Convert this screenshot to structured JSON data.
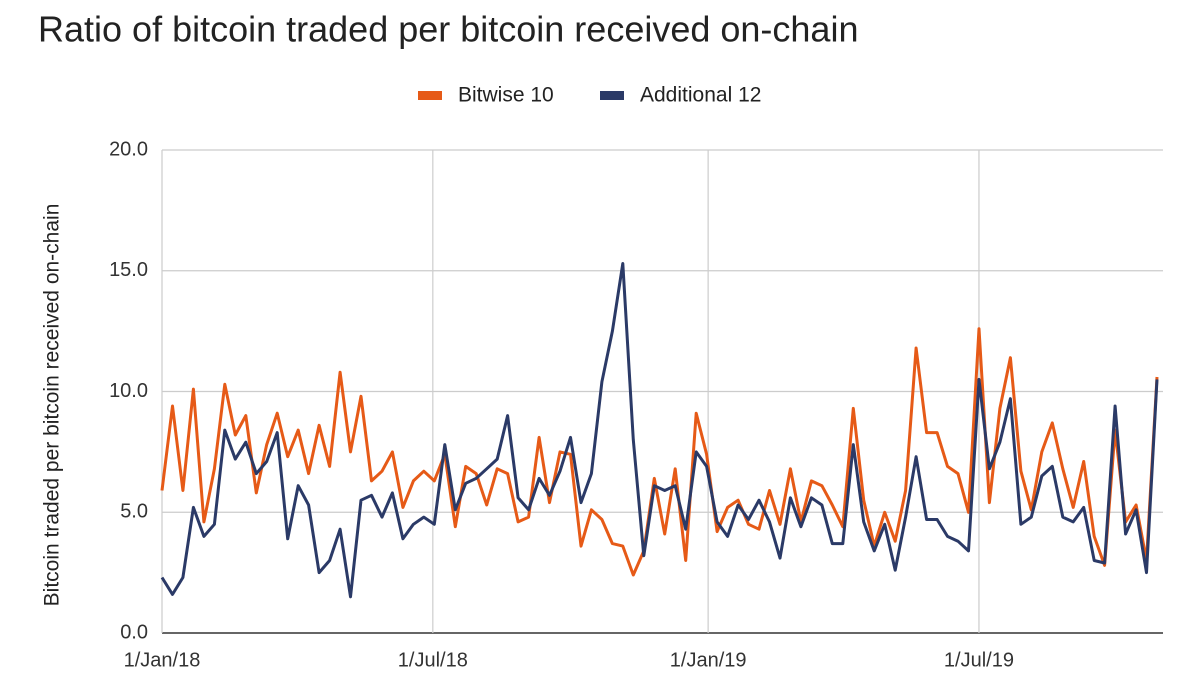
{
  "chart_data": {
    "type": "line",
    "title": "Ratio of bitcoin traded per bitcoin received on-chain",
    "y_label": "Bitcoin traded per bitcoin received on-chain",
    "legend": "top",
    "grid": true,
    "x": [
      "2018-01-01",
      "2018-01-08",
      "2018-01-15",
      "2018-01-22",
      "2018-01-29",
      "2018-02-05",
      "2018-02-12",
      "2018-02-19",
      "2018-02-26",
      "2018-03-05",
      "2018-03-12",
      "2018-03-19",
      "2018-03-26",
      "2018-04-02",
      "2018-04-09",
      "2018-04-16",
      "2018-04-23",
      "2018-04-30",
      "2018-05-07",
      "2018-05-14",
      "2018-05-21",
      "2018-05-28",
      "2018-06-04",
      "2018-06-11",
      "2018-06-18",
      "2018-06-25",
      "2018-07-02",
      "2018-07-09",
      "2018-07-16",
      "2018-07-23",
      "2018-07-30",
      "2018-08-06",
      "2018-08-13",
      "2018-08-20",
      "2018-08-27",
      "2018-09-03",
      "2018-09-10",
      "2018-09-17",
      "2018-09-24",
      "2018-10-01",
      "2018-10-08",
      "2018-10-15",
      "2018-10-22",
      "2018-10-29",
      "2018-11-05",
      "2018-11-12",
      "2018-11-19",
      "2018-11-26",
      "2018-12-03",
      "2018-12-10",
      "2018-12-17",
      "2018-12-24",
      "2018-12-31",
      "2019-01-07",
      "2019-01-14",
      "2019-01-21",
      "2019-01-28",
      "2019-02-04",
      "2019-02-11",
      "2019-02-18",
      "2019-02-25",
      "2019-03-04",
      "2019-03-11",
      "2019-03-18",
      "2019-03-25",
      "2019-04-01",
      "2019-04-08",
      "2019-04-15",
      "2019-04-22",
      "2019-04-29",
      "2019-05-06",
      "2019-05-13",
      "2019-05-20",
      "2019-05-27",
      "2019-06-03",
      "2019-06-10",
      "2019-06-17",
      "2019-06-24",
      "2019-07-01",
      "2019-07-08",
      "2019-07-15",
      "2019-07-22",
      "2019-07-29",
      "2019-08-05",
      "2019-08-12",
      "2019-08-19",
      "2019-08-26",
      "2019-09-02",
      "2019-09-09",
      "2019-09-16",
      "2019-09-23",
      "2019-09-30",
      "2019-10-07",
      "2019-10-14",
      "2019-10-21",
      "2019-10-28"
    ],
    "series": [
      {
        "name": "Bitwise 10",
        "color": "#e65a17",
        "values": [
          5.9,
          9.4,
          5.9,
          10.1,
          4.6,
          6.8,
          10.3,
          8.2,
          9.0,
          5.8,
          7.8,
          9.1,
          7.3,
          8.4,
          6.6,
          8.6,
          6.9,
          10.8,
          7.5,
          9.8,
          6.3,
          6.7,
          7.5,
          5.2,
          6.3,
          6.7,
          6.3,
          7.4,
          4.4,
          6.9,
          6.6,
          5.3,
          6.8,
          6.6,
          4.6,
          4.8,
          8.1,
          5.4,
          7.5,
          7.4,
          3.6,
          5.1,
          4.7,
          3.7,
          3.6,
          2.4,
          3.4,
          6.4,
          4.1,
          6.8,
          3.0,
          9.1,
          7.4,
          4.2,
          5.2,
          5.5,
          4.5,
          4.3,
          5.9,
          4.5,
          6.8,
          4.6,
          6.3,
          6.1,
          5.3,
          4.4,
          9.3,
          5.5,
          3.6,
          5.0,
          3.8,
          5.9,
          11.8,
          8.3,
          8.3,
          6.9,
          6.6,
          5.0,
          12.6,
          5.4,
          9.3,
          11.4,
          6.7,
          5.1,
          7.5,
          8.7,
          6.8,
          5.2,
          7.1,
          4.0,
          2.8,
          8.4,
          4.6,
          5.3,
          3.0,
          10.6
        ]
      },
      {
        "name": "Additional 12",
        "color": "#2b3a67",
        "values": [
          2.3,
          1.6,
          2.3,
          5.2,
          4.0,
          4.5,
          8.4,
          7.2,
          7.9,
          6.6,
          7.1,
          8.3,
          3.9,
          6.1,
          5.3,
          2.5,
          3.0,
          4.3,
          1.5,
          5.5,
          5.7,
          4.8,
          5.8,
          3.9,
          4.5,
          4.8,
          4.5,
          7.8,
          5.1,
          6.2,
          6.4,
          6.8,
          7.2,
          9.0,
          5.6,
          5.1,
          6.4,
          5.7,
          6.7,
          8.1,
          5.4,
          6.6,
          10.4,
          12.5,
          15.3,
          8.0,
          3.2,
          6.1,
          5.9,
          6.1,
          4.3,
          7.5,
          6.9,
          4.6,
          4.0,
          5.3,
          4.7,
          5.5,
          4.6,
          3.1,
          5.6,
          4.4,
          5.6,
          5.3,
          3.7,
          3.7,
          7.8,
          4.6,
          3.4,
          4.5,
          2.6,
          4.8,
          7.3,
          4.7,
          4.7,
          4.0,
          3.8,
          3.4,
          10.5,
          6.8,
          7.9,
          9.7,
          4.5,
          4.8,
          6.5,
          6.9,
          4.8,
          4.6,
          5.2,
          3.0,
          2.9,
          9.4,
          4.1,
          5.1,
          2.5,
          10.5
        ]
      }
    ],
    "xlim": [
      "2018-01-01",
      "2019-11-01"
    ],
    "xticks": [
      {
        "value": "2018-01-01",
        "label": "1/Jan/18"
      },
      {
        "value": "2018-07-01",
        "label": "1/Jul/18"
      },
      {
        "value": "2019-01-01",
        "label": "1/Jan/19"
      },
      {
        "value": "2019-07-01",
        "label": "1/Jul/19"
      }
    ],
    "ylim": [
      0,
      20
    ],
    "yticks": [
      {
        "value": 0,
        "label": "0.0"
      },
      {
        "value": 5,
        "label": "5.0"
      },
      {
        "value": 10,
        "label": "10.0"
      },
      {
        "value": 15,
        "label": "15.0"
      },
      {
        "value": 20,
        "label": "20.0"
      }
    ]
  }
}
